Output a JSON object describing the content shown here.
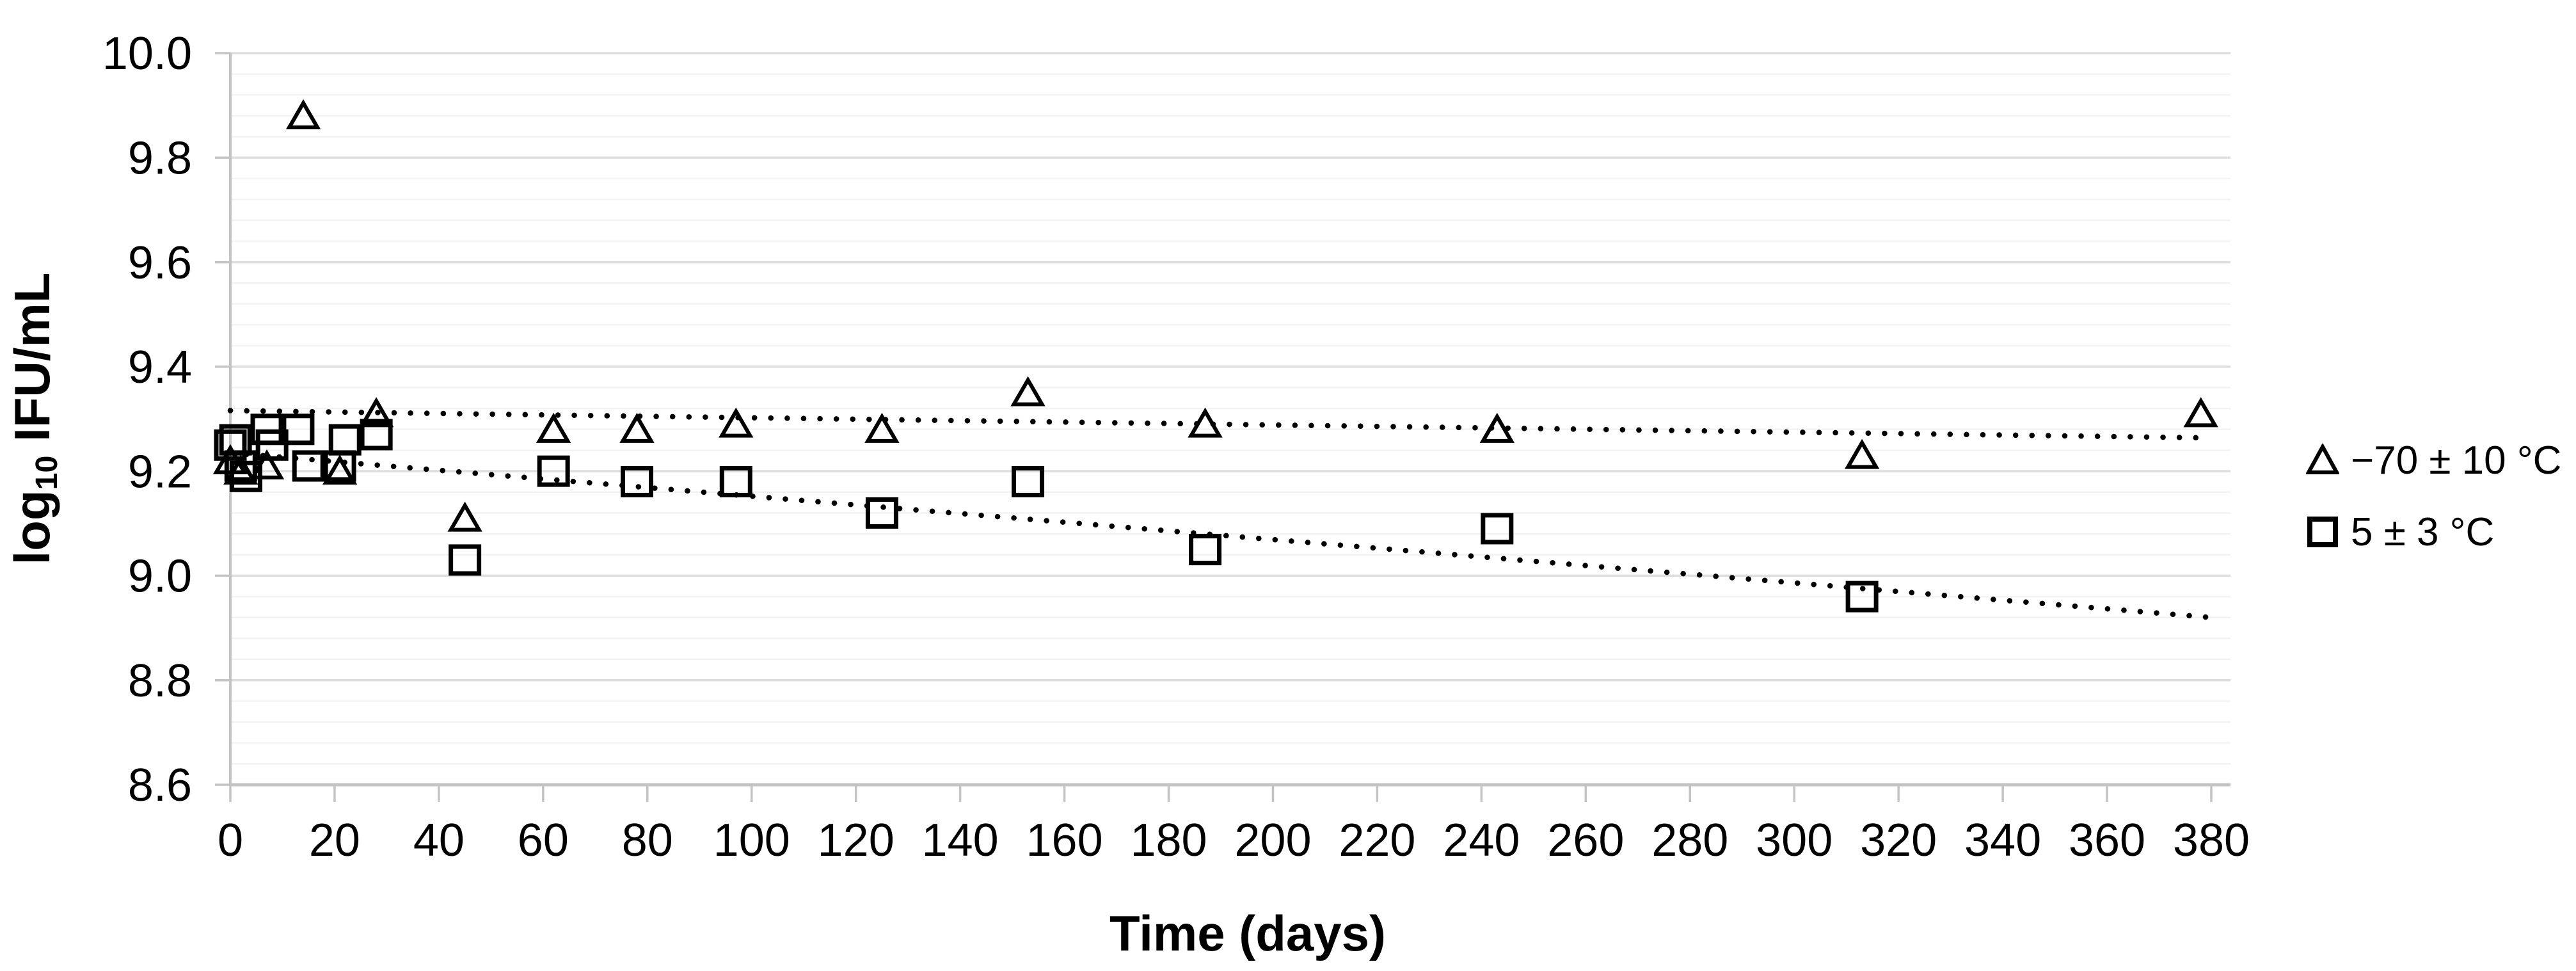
{
  "chart_data": {
    "type": "scatter",
    "title": "",
    "xlabel": "Time (days)",
    "ylabel": {
      "prefix": "log",
      "sub": "10",
      "suffix": " IFU/mL"
    },
    "x_axis": {
      "min": 0,
      "max": 380,
      "tick_step": 20,
      "grid": false,
      "tick_labels": [
        "0",
        "20",
        "40",
        "60",
        "80",
        "100",
        "120",
        "140",
        "160",
        "180",
        "200",
        "220",
        "240",
        "260",
        "280",
        "300",
        "320",
        "340",
        "360",
        "380"
      ]
    },
    "y_axis": {
      "min": 8.6,
      "max": 10.0,
      "tick_step": 0.2,
      "minor_step": 0.04,
      "grid": true,
      "tick_labels": [
        "10.0",
        "9.8",
        "9.6",
        "9.4",
        "9.2",
        "9.0",
        "8.8",
        "8.6"
      ]
    },
    "colors": {
      "marker": "#000000",
      "trendline": "#000000",
      "major_grid": "#dedede",
      "minor_grid": "#f3f3f3",
      "axis_line": "#c4c4c4",
      "text": "#000000"
    },
    "legend": {
      "position": "right",
      "entries": [
        "−70 ± 10 °C",
        "5 ± 3 °C"
      ]
    },
    "series": [
      {
        "name": "−70 ± 10 °C",
        "marker": "triangle",
        "points": [
          [
            0,
            9.22
          ],
          [
            2,
            9.2
          ],
          [
            7,
            9.21
          ],
          [
            14,
            9.88
          ],
          [
            21,
            9.2
          ],
          [
            28,
            9.31
          ],
          [
            45,
            9.11
          ],
          [
            62,
            9.28
          ],
          [
            78,
            9.28
          ],
          [
            97,
            9.29
          ],
          [
            125,
            9.28
          ],
          [
            153,
            9.35
          ],
          [
            187,
            9.29
          ],
          [
            243,
            9.28
          ],
          [
            313,
            9.23
          ],
          [
            378,
            9.31
          ]
        ],
        "trendline": {
          "style": "dotted",
          "x_start": 0,
          "y_start": 9.316,
          "x_end": 378,
          "y_end": 9.264
        }
      },
      {
        "name": "5 ± 3 °C",
        "marker": "square",
        "points": [
          [
            0,
            9.25
          ],
          [
            1,
            9.26
          ],
          [
            2,
            9.21
          ],
          [
            3,
            9.19
          ],
          [
            7,
            9.28
          ],
          [
            8,
            9.25
          ],
          [
            13,
            9.28
          ],
          [
            15,
            9.21
          ],
          [
            21,
            9.21
          ],
          [
            22,
            9.26
          ],
          [
            28,
            9.27
          ],
          [
            45,
            9.03
          ],
          [
            62,
            9.2
          ],
          [
            78,
            9.18
          ],
          [
            97,
            9.18
          ],
          [
            125,
            9.12
          ],
          [
            153,
            9.18
          ],
          [
            187,
            9.05
          ],
          [
            243,
            9.09
          ],
          [
            313,
            8.96
          ]
        ],
        "trendline": {
          "style": "dotted",
          "x_start": 0,
          "y_start": 9.235,
          "x_end": 380,
          "y_end": 8.92
        }
      }
    ]
  }
}
